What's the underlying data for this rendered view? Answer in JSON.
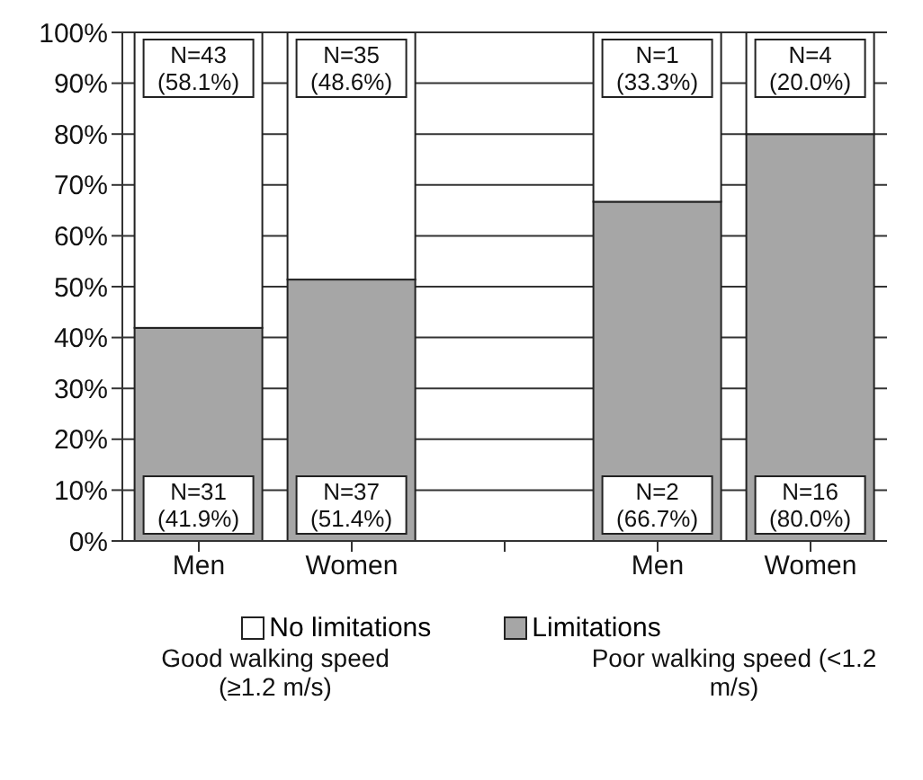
{
  "chart_data": {
    "type": "bar",
    "stacked": true,
    "categories": [
      "Men",
      "Women",
      null,
      "Men",
      "Women"
    ],
    "series": [
      {
        "name": "Limitations",
        "color": "#a6a6a6",
        "values": [
          41.9,
          51.4,
          null,
          66.7,
          80.0
        ],
        "value_labels": [
          "N=31 (41.9%)",
          "N=37 (51.4%)",
          null,
          "N=2 (66.7%)",
          "N=16 (80.0%)"
        ]
      },
      {
        "name": "No limitations",
        "color": "#ffffff",
        "values": [
          58.1,
          48.6,
          null,
          33.3,
          20.0
        ],
        "value_labels": [
          "N=43 (58.1%)",
          "N=35 (48.6%)",
          null,
          "N=1 (33.3%)",
          "N=4 (20.0%)"
        ]
      }
    ],
    "ylim": [
      0,
      100
    ],
    "yticks": [
      {
        "value": 0,
        "label": "0%"
      },
      {
        "value": 10,
        "label": "10%"
      },
      {
        "value": 20,
        "label": "20%"
      },
      {
        "value": 30,
        "label": "30%"
      },
      {
        "value": 40,
        "label": "40%"
      },
      {
        "value": 50,
        "label": "50%"
      },
      {
        "value": 60,
        "label": "60%"
      },
      {
        "value": 70,
        "label": "70%"
      },
      {
        "value": 80,
        "label": "80%"
      },
      {
        "value": 90,
        "label": "90%"
      },
      {
        "value": 100,
        "label": "100%"
      }
    ],
    "grid": "y",
    "legend": "bottom",
    "annotations": [
      "Good walking speed (≥1.2 m/s)",
      "Poor walking speed (<1.2 m/s)"
    ]
  }
}
